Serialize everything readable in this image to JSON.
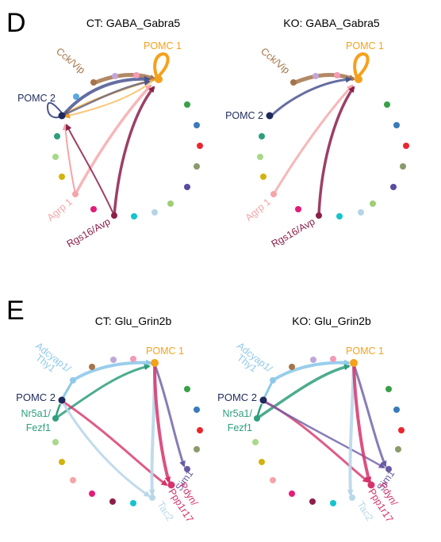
{
  "colors": {
    "pomc1": "#f5a11c",
    "pomc2": "#1f2a5c",
    "cck": "#a5744a",
    "agrp": "#f4a5a8",
    "rgs16": "#8b1f4a",
    "adcyap": "#8ec9ea",
    "nr5a1": "#2e9e7d",
    "sim1": "#6a5ba5",
    "pdyn": "#d6336b",
    "tac2": "#b9d7ea"
  },
  "panels": [
    {
      "letter": "D",
      "charts": [
        {
          "title": "CT: GABA_Gabra5",
          "labels": {
            "pomc1": "POMC 1",
            "cck": "Cck/Vip",
            "pomc2": "POMC 2",
            "agrp": "Agrp 1",
            "rgs16": "Rgs16/Avp"
          }
        },
        {
          "title": "KO: GABA_Gabra5",
          "labels": {
            "pomc1": "POMC 1",
            "cck": "Cck/Vip",
            "pomc2": "POMC 2",
            "agrp": "Agrp 1",
            "rgs16": "Rgs16/Avp"
          }
        }
      ]
    },
    {
      "letter": "E",
      "charts": [
        {
          "title": "CT: Glu_Grin2b",
          "labels": {
            "pomc1": "POMC 1",
            "adcyap_1": "Adcyap1/",
            "adcyap_2": "Thy1",
            "pomc2": "POMC 2",
            "nr5a1_1": "Nr5a1/",
            "nr5a1_2": "Fezf1",
            "sim1": "Sim1",
            "pdyn_1": "Pdyn/",
            "pdyn_2": "Ppp1r17",
            "tac2": "Tac2"
          }
        },
        {
          "title": "KO: Glu_Grin2b",
          "labels": {
            "pomc1": "POMC 1",
            "adcyap_1": "Adcyap1/",
            "adcyap_2": "Thy1",
            "pomc2": "POMC 2",
            "nr5a1_1": "Nr5a1/",
            "nr5a1_2": "Fezf1",
            "sim1": "Sim1",
            "pdyn_1": "Pdyn/",
            "pdyn_2": "Ppp1r17",
            "tac2": "Tac2"
          }
        }
      ]
    }
  ]
}
